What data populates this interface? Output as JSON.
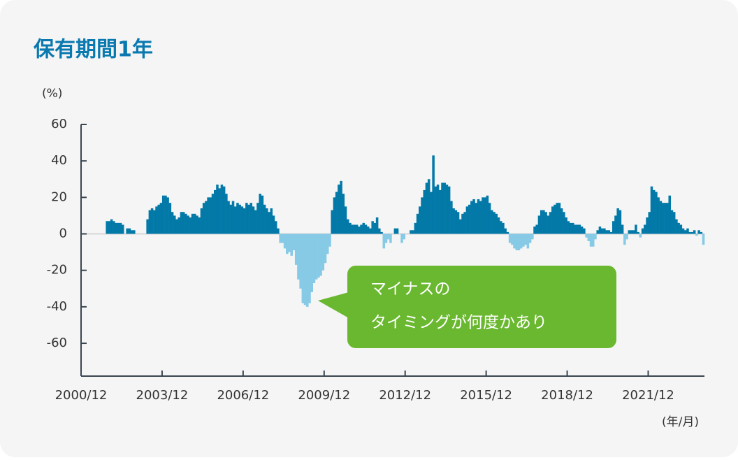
{
  "chart_data": {
    "type": "bar",
    "title": "保有期間1年",
    "y_unit": "(%)",
    "x_unit": "(年/月)",
    "annotation": [
      "マイナスの",
      "タイミングが何度かあり"
    ],
    "color": "#0379a8",
    "negative_color": "#86cae6",
    "zero_line_color": "#d8d8d8",
    "ylim": [
      -78,
      60
    ],
    "yticks": [
      60,
      40,
      20,
      0,
      -20,
      -40,
      -60
    ],
    "categories": [
      "2000/12",
      null,
      null,
      null,
      null,
      null,
      null,
      null,
      null,
      null,
      null,
      null,
      null,
      null,
      null,
      null,
      null,
      null,
      null,
      null,
      null,
      null,
      null,
      null,
      null,
      null,
      null,
      null,
      null,
      null,
      null,
      null,
      null,
      null,
      null,
      null,
      "2003/12",
      null,
      null,
      null,
      null,
      null,
      null,
      null,
      null,
      null,
      null,
      null,
      null,
      null,
      null,
      null,
      null,
      null,
      null,
      null,
      null,
      null,
      null,
      null,
      null,
      null,
      null,
      null,
      null,
      null,
      null,
      null,
      null,
      null,
      null,
      null,
      "2006/12",
      null,
      null,
      null,
      null,
      null,
      null,
      null,
      null,
      null,
      null,
      null,
      null,
      null,
      null,
      null,
      null,
      null,
      null,
      null,
      null,
      null,
      null,
      null,
      null,
      null,
      null,
      null,
      null,
      null,
      null,
      null,
      null,
      null,
      null,
      null,
      "2009/12",
      null,
      null,
      null,
      null,
      null,
      null,
      null,
      null,
      null,
      null,
      null,
      null,
      null,
      null,
      null,
      null,
      null,
      null,
      null,
      null,
      null,
      null,
      null,
      null,
      null,
      null,
      null,
      null,
      null,
      null,
      null,
      null,
      null,
      null,
      null,
      "2012/12",
      null,
      null,
      null,
      null,
      null,
      null,
      null,
      null,
      null,
      null,
      null,
      null,
      null,
      null,
      null,
      null,
      null,
      null,
      null,
      null,
      null,
      null,
      null,
      null,
      null,
      null,
      null,
      null,
      null,
      null,
      null,
      null,
      null,
      null,
      null,
      "2015/12",
      null,
      null,
      null,
      null,
      null,
      null,
      null,
      null,
      null,
      null,
      null,
      null,
      null,
      null,
      null,
      null,
      null,
      null,
      null,
      null,
      null,
      null,
      null,
      null,
      null,
      null,
      null,
      null,
      null,
      null,
      null,
      null,
      null,
      null,
      null,
      "2018/12",
      null,
      null,
      null,
      null,
      null,
      null,
      null,
      null,
      null,
      null,
      null,
      null,
      null,
      null,
      null,
      null,
      null,
      null,
      null,
      null,
      null,
      null,
      null,
      null,
      null,
      null,
      null,
      null,
      null,
      null,
      null,
      null,
      null,
      null,
      null,
      "2021/12",
      null,
      null,
      null,
      null,
      null,
      null,
      null,
      null,
      null,
      null,
      null,
      null,
      null,
      null,
      null,
      null,
      null,
      null,
      null,
      null,
      null,
      null,
      null,
      null
    ],
    "values": [
      null,
      null,
      null,
      null,
      null,
      null,
      null,
      null,
      null,
      null,
      null,
      7,
      7,
      8,
      7,
      6,
      6,
      6,
      5,
      null,
      3,
      3,
      2,
      2,
      null,
      null,
      null,
      null,
      null,
      8,
      13,
      14,
      13,
      15,
      16,
      17,
      21,
      21,
      20,
      17,
      12,
      10,
      8,
      9,
      12,
      12,
      11,
      10,
      9,
      11,
      11,
      10,
      9,
      14,
      17,
      18,
      20,
      20,
      22,
      24,
      27,
      25,
      27,
      26,
      22,
      18,
      16,
      18,
      15,
      17,
      16,
      15,
      14,
      17,
      16,
      17,
      15,
      13,
      17,
      22,
      21,
      16,
      14,
      12,
      14,
      10,
      7,
      3,
      -5,
      -5,
      -8,
      -11,
      -10,
      -12,
      -9,
      -17,
      -25,
      -30,
      -38,
      -39,
      -40,
      -38,
      -32,
      -27,
      -25,
      -24,
      -23,
      -20,
      -16,
      -11,
      -7,
      13,
      20,
      23,
      27,
      29,
      22,
      15,
      8,
      6,
      5,
      5,
      5,
      4,
      5,
      6,
      5,
      4,
      3,
      7,
      6,
      9,
      3,
      1,
      -8,
      -5,
      -3,
      -5,
      null,
      3,
      3,
      null,
      -5,
      -3,
      null,
      null,
      2,
      2,
      6,
      11,
      15,
      20,
      24,
      28,
      30,
      23,
      43,
      26,
      27,
      24,
      28,
      28,
      27,
      26,
      18,
      14,
      13,
      12,
      8,
      11,
      12,
      15,
      16,
      18,
      19,
      17,
      19,
      18,
      20,
      20,
      21,
      17,
      13,
      12,
      11,
      9,
      7,
      6,
      3,
      1,
      -5,
      -6,
      -8,
      -9,
      -9,
      -8,
      -7,
      -6,
      -8,
      -5,
      -3,
      4,
      5,
      10,
      13,
      13,
      12,
      10,
      12,
      15,
      16,
      17,
      17,
      14,
      12,
      9,
      7,
      6,
      6,
      5,
      5,
      5,
      4,
      3,
      -2,
      -4,
      -7,
      -7,
      -3,
      2,
      4,
      3,
      3,
      2,
      2,
      1,
      7,
      10,
      14,
      13,
      5,
      -6,
      -3,
      2,
      2,
      2,
      5,
      1,
      -2,
      3,
      5,
      9,
      12,
      26,
      24,
      23,
      20,
      18,
      17,
      17,
      17,
      21,
      13,
      12,
      8,
      6,
      5,
      3,
      2,
      3,
      1,
      1,
      2,
      -1,
      2,
      1,
      -6
    ]
  }
}
